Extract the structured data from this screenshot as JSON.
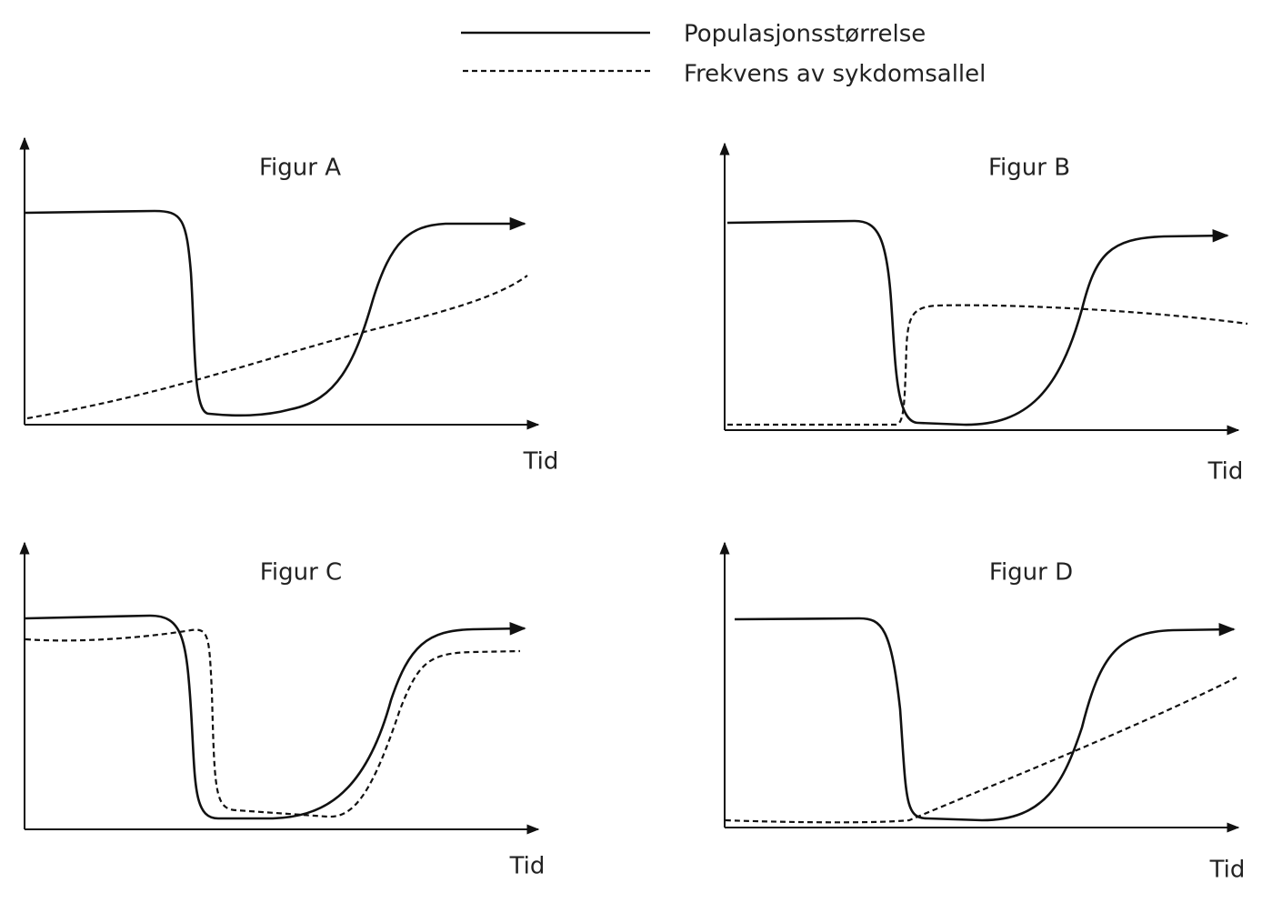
{
  "legend": [
    "Populasjonsstørrelse",
    "Frekvens av sykdomsallel"
  ],
  "figures": [
    {
      "title": "Figur A",
      "x_label": "Tid"
    },
    {
      "title": "Figur B",
      "x_label": "Tid"
    },
    {
      "title": "Figur C",
      "x_label": "Tid"
    },
    {
      "title": "Figur D",
      "x_label": "Tid"
    }
  ]
}
